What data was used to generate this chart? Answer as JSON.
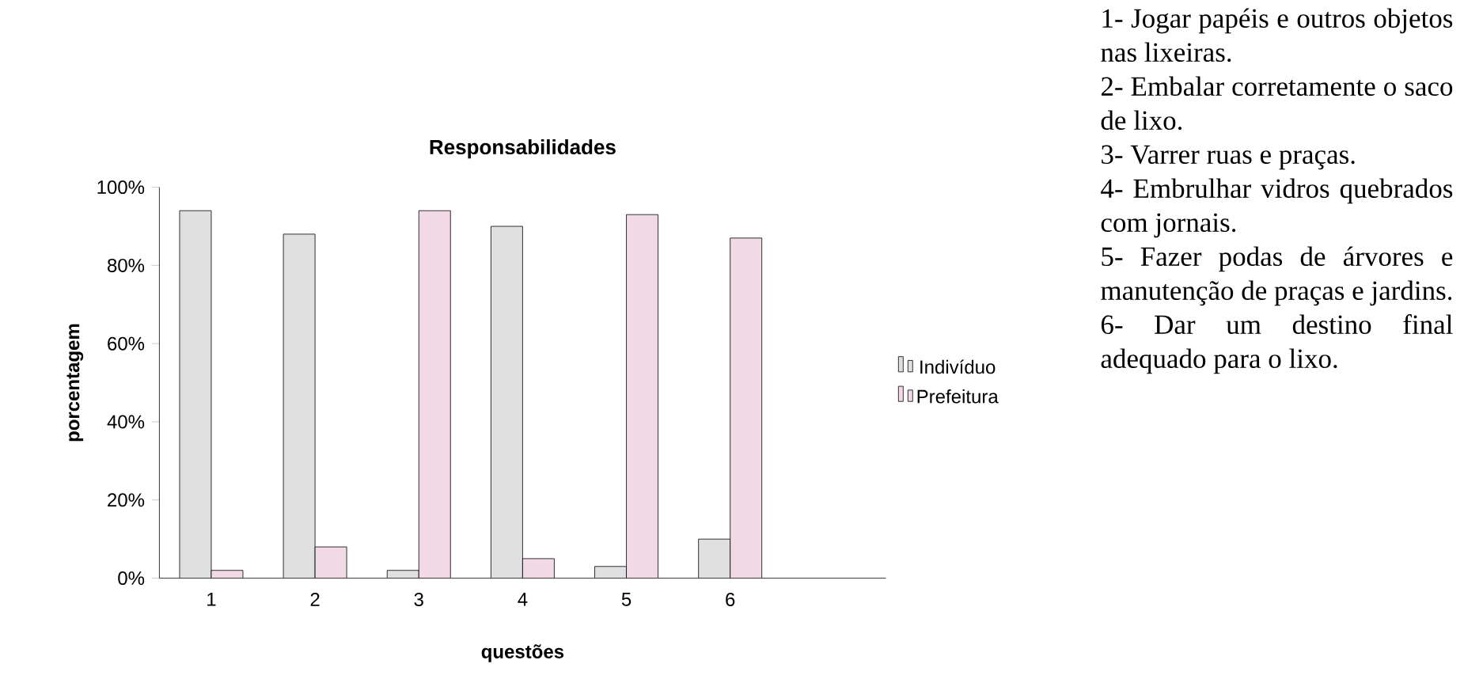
{
  "chart_data": {
    "type": "bar",
    "title": "Responsabilidades",
    "xlabel": "questões",
    "ylabel": "porcentagem",
    "categories": [
      "1",
      "2",
      "3",
      "4",
      "5",
      "6"
    ],
    "series": [
      {
        "name": "Indivíduo",
        "color": "#e0e0e0",
        "values": [
          94,
          88,
          2,
          90,
          3,
          10
        ]
      },
      {
        "name": "Prefeitura",
        "color": "#f2d9e6",
        "values": [
          2,
          8,
          94,
          5,
          93,
          87
        ]
      }
    ],
    "ylim": [
      0,
      100
    ],
    "yticks": [
      {
        "value": 0,
        "label": "0%"
      },
      {
        "value": 20,
        "label": "20%"
      },
      {
        "value": 40,
        "label": "40%"
      },
      {
        "value": 60,
        "label": "60%"
      },
      {
        "value": 80,
        "label": "80%"
      },
      {
        "value": 100,
        "label": "100%"
      }
    ],
    "legend": "right",
    "grid": false,
    "annotations": [
      "1- Jogar papéis e outros objetos nas lixeiras.",
      "2- Embalar corretamente o saco de lixo.",
      "3- Varrer ruas e praças.",
      "4- Embrulhar vidros quebrados com jornais.",
      "5- Fazer podas de árvores e manutenção de praças e jardins.",
      "6- Dar um destino final adequado para o lixo."
    ]
  }
}
